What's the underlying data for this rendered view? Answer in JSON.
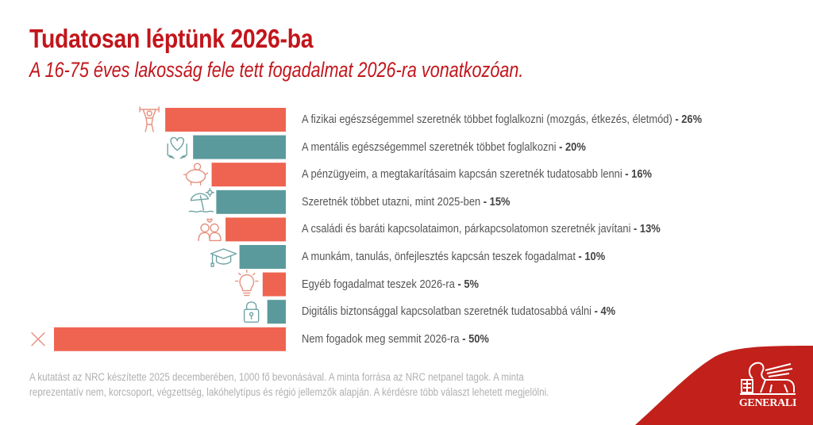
{
  "header": {
    "title": "Tudatosan léptünk 2026-ba",
    "subtitle": "A 16-75 éves lakosság fele tett fogadalmat 2026-ra vonatkozóan."
  },
  "chart_data": {
    "type": "bar",
    "orientation": "horizontal",
    "title": "Tudatosan léptünk 2026-ba",
    "unit": "%",
    "xlim": [
      0,
      50
    ],
    "colors": {
      "coral": "#ee6450",
      "teal": "#5b9a9c"
    },
    "items": [
      {
        "label": "A fizikai egészségemmel szeretnék többet foglalkozni (mozgás, étkezés, életmód)",
        "value_label": "- 26%",
        "value": 26,
        "color": "coral",
        "icon": "weightlifter-icon"
      },
      {
        "label": "A mentális egészségemmel szeretnék többet foglalkozni",
        "value_label": "- 20%",
        "value": 20,
        "color": "teal",
        "icon": "heart-hands-icon"
      },
      {
        "label": "A pénzügyeim, a megtakarításaim kapcsán szeretnék tudatosabb lenni",
        "value_label": "- 16%",
        "value": 16,
        "color": "coral",
        "icon": "piggy-bank-icon"
      },
      {
        "label": "Szeretnék többet utazni, mint 2025-ben",
        "value_label": "- 15%",
        "value": 15,
        "color": "teal",
        "icon": "beach-umbrella-icon"
      },
      {
        "label": "A családi és baráti kapcsolataimon, párkapcsolatomon szeretnék javítani",
        "value_label": "- 13%",
        "value": 13,
        "color": "coral",
        "icon": "couple-heart-icon"
      },
      {
        "label": "A munkám, tanulás, önfejlesztés kapcsán teszek fogadalmat",
        "value_label": "- 10%",
        "value": 10,
        "color": "teal",
        "icon": "graduation-cap-icon"
      },
      {
        "label": "Egyéb fogadalmat teszek 2026-ra",
        "value_label": "- 5%",
        "value": 5,
        "color": "coral",
        "icon": "lightbulb-icon"
      },
      {
        "label": "Digitális biztonsággal kapcsolatban szeretnék tudatosabbá válni",
        "value_label": "- 4%",
        "value": 4,
        "color": "teal",
        "icon": "padlock-icon"
      },
      {
        "label": "Nem fogadok meg semmit 2026-ra",
        "value_label": "- 50%",
        "value": 50,
        "color": "coral",
        "icon": "x-mark-icon"
      }
    ]
  },
  "footnote": {
    "line1": "A kutatást az NRC készítette 2025 decemberében, 1000 fő bevonásával. A minta forrása az NRC netpanel tagok. A minta",
    "line2": "reprezentatív nem, korcsoport, végzettség, lakóhelytípus és régió jellemzők alapján. A kérdésre több választ lehetett megjelölni."
  },
  "brand": {
    "logo_text": "GENERALI",
    "color": "#c2201a"
  }
}
